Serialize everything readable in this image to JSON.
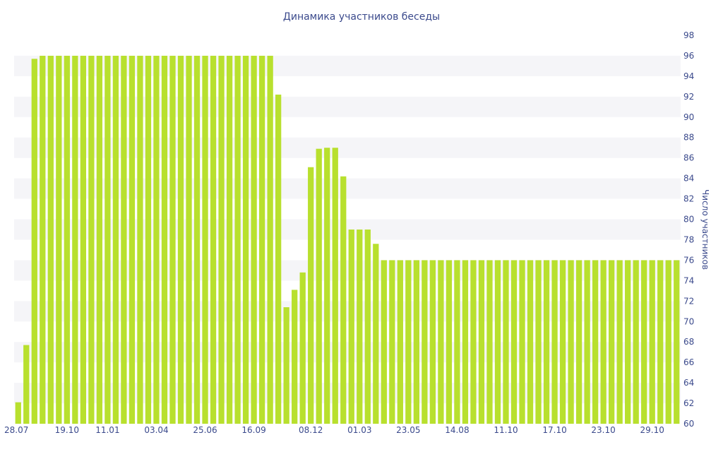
{
  "chart_data": {
    "type": "bar",
    "title": "Динамика участников беседы",
    "ylabel": "Число участников",
    "xlabel": "",
    "ylim": [
      60,
      98
    ],
    "y_ticks": [
      60,
      62,
      64,
      66,
      68,
      70,
      72,
      74,
      76,
      78,
      80,
      82,
      84,
      86,
      88,
      90,
      92,
      94,
      96,
      98
    ],
    "x_tick_labels": [
      "28.07",
      "19.10",
      "11.01",
      "03.04",
      "25.06",
      "16.09",
      "08.12",
      "01.03",
      "23.05",
      "14.08",
      "11.10",
      "17.10",
      "23.10",
      "29.10"
    ],
    "x_tick_bar_index": [
      0,
      6,
      11,
      17,
      23,
      29,
      36,
      42,
      48,
      54,
      60,
      66,
      72,
      78
    ],
    "grid": "horizontal alternating bands",
    "y_axis_position": "right",
    "bar_color": "#b8e02e",
    "band_color": "#f5f5f8",
    "values": [
      62.1,
      67.7,
      95.7,
      96,
      96,
      96,
      96,
      96,
      96,
      96,
      96,
      96,
      96,
      96,
      96,
      96,
      96,
      96,
      96,
      96,
      96,
      96,
      96,
      96,
      96,
      96,
      96,
      96,
      96,
      96,
      96,
      96,
      92.2,
      71.4,
      73.1,
      74.8,
      85.1,
      86.9,
      87,
      87,
      84.2,
      79,
      79,
      79,
      77.6,
      76,
      76,
      76,
      76,
      76,
      76,
      76,
      76,
      76,
      76,
      76,
      76,
      76,
      76,
      76,
      76,
      76,
      76,
      76,
      76,
      76,
      76,
      76,
      76,
      76,
      76,
      76,
      76,
      76,
      76,
      76,
      76,
      76,
      76,
      76,
      76,
      76
    ]
  }
}
